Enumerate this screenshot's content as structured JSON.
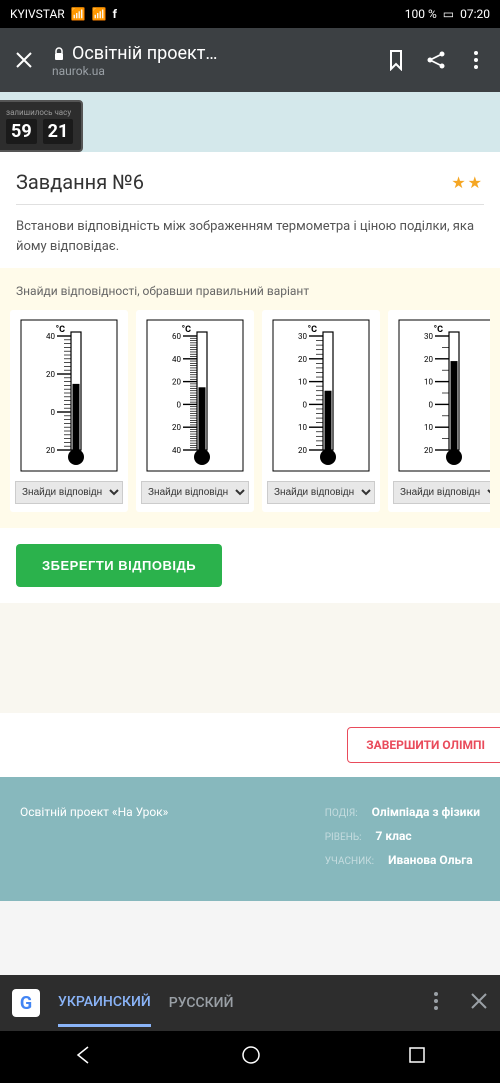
{
  "status": {
    "carrier": "KYIVSTAR",
    "battery": "100 %",
    "time": "07:20"
  },
  "browser": {
    "title": "Освітній проект…",
    "domain": "naurok.ua"
  },
  "timer": {
    "label": "залишилось часу",
    "min": "59",
    "sec": "21"
  },
  "task": {
    "title": "Завдання №6",
    "stars": "★★",
    "desc": "Встанови відповідність між зображенням термометра і ціною поділки, яка йому відповідає.",
    "instruction": "Знайди відповідності, обравши правильний варіант",
    "select_placeholder": "Знайди відповідн",
    "save": "ЗБЕРЕГТИ ВІДПОВІДЬ"
  },
  "thermometers": [
    {
      "unit": "°C",
      "labels": [
        40,
        20,
        0,
        20
      ],
      "tick_major": 3,
      "tick_minor": 10,
      "fluid_level": 0.58
    },
    {
      "unit": "°C",
      "labels": [
        60,
        40,
        20,
        0,
        20,
        40
      ],
      "tick_major": 5,
      "tick_minor": 10,
      "fluid_level": 0.55
    },
    {
      "unit": "°C",
      "labels": [
        30,
        20,
        10,
        0,
        10,
        20
      ],
      "tick_major": 5,
      "tick_minor": 5,
      "fluid_level": 0.52
    },
    {
      "unit": "°C",
      "labels": [
        30,
        20,
        10,
        0,
        10,
        20
      ],
      "tick_major": 5,
      "tick_minor": 2,
      "fluid_level": 0.78
    }
  ],
  "finish_btn": "ЗАВЕРШИТИ ОЛІМПІ",
  "footer": {
    "project": "Освітній проект «На Урок»",
    "event_label": "ПОДІЯ:",
    "event": "Олімпіада з фізики",
    "level_label": "РІВЕНЬ:",
    "level": "7 клас",
    "user_label": "УЧАСНИК:",
    "user": "Иванова Ольга"
  },
  "translate": {
    "lang1": "УКРАИНСКИЙ",
    "lang2": "РУССКИЙ"
  }
}
